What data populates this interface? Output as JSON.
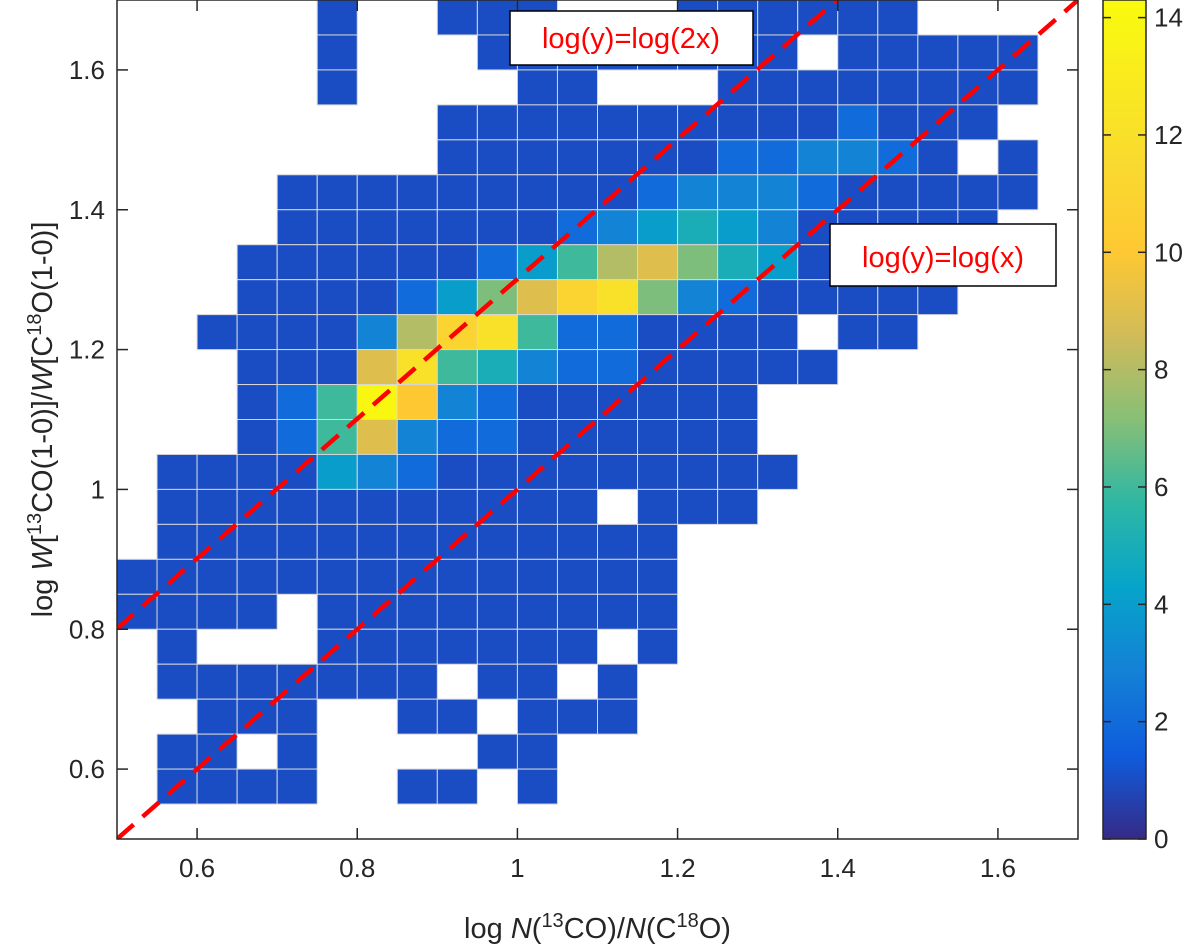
{
  "chart_data": {
    "type": "heatmap",
    "title": "",
    "xlabel": {
      "prefix": "log ",
      "parts": [
        {
          "t": "N",
          "style": "italic"
        },
        {
          "t": "("
        },
        {
          "t": "13",
          "style": "sup"
        },
        {
          "t": "CO)/"
        },
        {
          "t": "N",
          "style": "italic"
        },
        {
          "t": "(C"
        },
        {
          "t": "18",
          "style": "sup"
        },
        {
          "t": "O)"
        }
      ]
    },
    "ylabel": {
      "prefix": "log ",
      "parts": [
        {
          "t": "W",
          "style": "italic"
        },
        {
          "t": "["
        },
        {
          "t": "13",
          "style": "sup"
        },
        {
          "t": "CO(1-0)]/"
        },
        {
          "t": "W",
          "style": "italic"
        },
        {
          "t": "[C"
        },
        {
          "t": "18",
          "style": "sup"
        },
        {
          "t": "O(1-0)]"
        }
      ]
    },
    "xlim": [
      0.5,
      1.7
    ],
    "ylim": [
      0.5,
      1.7
    ],
    "xticks": [
      0.6,
      0.8,
      1.0,
      1.2,
      1.4,
      1.6
    ],
    "xtick_labels": [
      "0.6",
      "0.8",
      "1",
      "1.2",
      "1.4",
      "1.6"
    ],
    "yticks": [
      0.6,
      0.8,
      1.0,
      1.2,
      1.4,
      1.6
    ],
    "ytick_labels": [
      "0.6",
      "0.8",
      "1",
      "1.2",
      "1.4",
      "1.6"
    ],
    "bins": {
      "x_start": 0.5,
      "x_width": 0.05,
      "y_start": 0.5,
      "y_width": 0.05,
      "counts_top_to_bottom": [
        [
          0,
          0,
          0,
          0,
          0,
          1,
          0,
          0,
          1,
          1,
          1,
          0,
          0,
          0,
          1,
          1,
          1,
          1,
          1,
          1,
          0,
          0,
          0,
          0
        ],
        [
          0,
          0,
          0,
          0,
          0,
          1,
          0,
          0,
          0,
          1,
          1,
          1,
          1,
          1,
          1,
          1,
          1,
          0,
          1,
          1,
          1,
          1,
          1,
          0
        ],
        [
          0,
          0,
          0,
          0,
          0,
          1,
          0,
          0,
          0,
          0,
          1,
          1,
          0,
          0,
          0,
          1,
          1,
          1,
          1,
          1,
          1,
          1,
          1,
          0
        ],
        [
          0,
          0,
          0,
          0,
          0,
          0,
          0,
          0,
          1,
          1,
          1,
          1,
          1,
          1,
          1,
          1,
          1,
          1,
          2,
          1,
          1,
          1,
          0,
          0
        ],
        [
          0,
          0,
          0,
          0,
          0,
          0,
          0,
          0,
          1,
          1,
          1,
          1,
          1,
          1,
          1,
          2,
          2,
          3,
          3,
          2,
          1,
          0,
          1,
          0
        ],
        [
          0,
          0,
          0,
          0,
          1,
          1,
          1,
          1,
          1,
          1,
          1,
          1,
          1,
          2,
          3,
          3,
          3,
          2,
          1,
          1,
          1,
          1,
          1,
          0
        ],
        [
          0,
          0,
          0,
          0,
          1,
          1,
          1,
          1,
          1,
          1,
          1,
          2,
          3,
          4,
          5,
          4,
          3,
          1,
          1,
          1,
          1,
          1,
          0,
          0
        ],
        [
          0,
          0,
          0,
          1,
          1,
          1,
          1,
          1,
          1,
          2,
          4,
          6,
          8,
          9,
          7,
          5,
          4,
          1,
          1,
          1,
          1,
          1,
          0,
          0
        ],
        [
          0,
          0,
          0,
          1,
          1,
          1,
          1,
          2,
          4,
          7,
          9,
          11,
          12,
          7,
          3,
          2,
          1,
          1,
          1,
          1,
          1,
          0,
          0,
          0
        ],
        [
          0,
          0,
          1,
          1,
          1,
          1,
          3,
          8,
          11,
          12,
          6,
          2,
          2,
          1,
          1,
          1,
          1,
          0,
          1,
          1,
          0,
          0,
          0,
          0
        ],
        [
          0,
          0,
          0,
          1,
          1,
          1,
          9,
          12,
          6,
          5,
          3,
          2,
          2,
          1,
          1,
          1,
          1,
          1,
          0,
          0,
          0,
          0,
          0,
          0
        ],
        [
          0,
          0,
          0,
          1,
          2,
          6,
          14,
          10,
          3,
          2,
          1,
          1,
          1,
          1,
          1,
          1,
          0,
          0,
          0,
          0,
          0,
          0,
          0,
          0
        ],
        [
          0,
          0,
          0,
          1,
          2,
          6,
          9,
          3,
          2,
          2,
          1,
          1,
          1,
          1,
          1,
          1,
          0,
          0,
          0,
          0,
          0,
          0,
          0,
          0
        ],
        [
          0,
          1,
          1,
          1,
          1,
          4,
          3,
          2,
          1,
          1,
          1,
          1,
          1,
          1,
          1,
          1,
          1,
          0,
          0,
          0,
          0,
          0,
          0,
          0
        ],
        [
          0,
          1,
          1,
          1,
          1,
          1,
          1,
          1,
          1,
          1,
          1,
          1,
          0,
          1,
          1,
          1,
          0,
          0,
          0,
          0,
          0,
          0,
          0,
          0
        ],
        [
          0,
          1,
          1,
          1,
          1,
          1,
          1,
          1,
          1,
          1,
          1,
          1,
          1,
          1,
          0,
          0,
          0,
          0,
          0,
          0,
          0,
          0,
          0,
          0
        ],
        [
          1,
          1,
          1,
          1,
          1,
          1,
          1,
          1,
          1,
          1,
          1,
          1,
          1,
          1,
          0,
          0,
          0,
          0,
          0,
          0,
          0,
          0,
          0,
          0
        ],
        [
          1,
          1,
          1,
          1,
          0,
          1,
          1,
          1,
          1,
          1,
          1,
          1,
          1,
          1,
          0,
          0,
          0,
          0,
          0,
          0,
          0,
          0,
          0,
          0
        ],
        [
          0,
          1,
          0,
          0,
          0,
          1,
          1,
          1,
          1,
          1,
          1,
          1,
          0,
          1,
          0,
          0,
          0,
          0,
          0,
          0,
          0,
          0,
          0,
          0
        ],
        [
          0,
          1,
          1,
          1,
          1,
          1,
          1,
          1,
          0,
          1,
          1,
          0,
          1,
          0,
          0,
          0,
          0,
          0,
          0,
          0,
          0,
          0,
          0,
          0
        ],
        [
          0,
          0,
          1,
          1,
          1,
          0,
          0,
          1,
          1,
          0,
          1,
          1,
          1,
          0,
          0,
          0,
          0,
          0,
          0,
          0,
          0,
          0,
          0,
          0
        ],
        [
          0,
          1,
          1,
          0,
          1,
          0,
          0,
          0,
          0,
          1,
          1,
          0,
          0,
          0,
          0,
          0,
          0,
          0,
          0,
          0,
          0,
          0,
          0,
          0
        ],
        [
          0,
          1,
          1,
          1,
          1,
          0,
          0,
          1,
          1,
          0,
          1,
          0,
          0,
          0,
          0,
          0,
          0,
          0,
          0,
          0,
          0,
          0,
          0,
          0
        ],
        [
          0,
          0,
          0,
          0,
          0,
          0,
          0,
          0,
          0,
          0,
          0,
          0,
          0,
          0,
          0,
          0,
          0,
          0,
          0,
          0,
          0,
          0,
          0,
          0
        ]
      ]
    },
    "reference_lines": [
      {
        "label": "log(y)=log(2x)",
        "slope": 1,
        "intercept": 0.30103,
        "color": "#ff0000",
        "style": "dashed"
      },
      {
        "label": "log(y)=log(x)",
        "slope": 1,
        "intercept": 0,
        "color": "#ff0000",
        "style": "dashed"
      }
    ],
    "colorbar": {
      "colormap": "parula",
      "range": [
        0,
        14.3
      ],
      "ticks": [
        0,
        2,
        4,
        6,
        8,
        10,
        12,
        14
      ],
      "tick_labels": [
        "0",
        "2",
        "4",
        "6",
        "8",
        "10",
        "12",
        "14"
      ]
    },
    "colors": {
      "empty_cell": "#ffffff",
      "cell_edge": "#d6d6d6",
      "axis": "#262626",
      "line": "#ff0000"
    }
  }
}
